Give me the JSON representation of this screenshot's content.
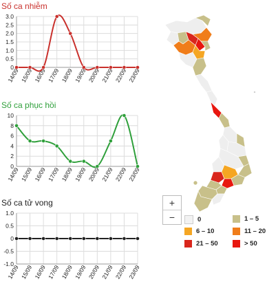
{
  "colors": {
    "cases": "#c9302c",
    "recovered": "#2e9f3a",
    "deaths": "#222222",
    "grid": "#dcdcdc",
    "axis": "#999999"
  },
  "chart_data": [
    {
      "type": "line",
      "title": "Số ca nhiễm",
      "categories": [
        "14/09",
        "15/09",
        "16/09",
        "17/09",
        "18/09",
        "19/09",
        "20/09",
        "21/09",
        "22/09",
        "23/09"
      ],
      "values": [
        0,
        0,
        0,
        3,
        2,
        0,
        0,
        0,
        0,
        0
      ],
      "ylim": [
        0,
        3
      ],
      "yticks": [
        "0",
        "0.5",
        "1.0",
        "1.5",
        "2.0",
        "2.5",
        "3.0"
      ],
      "ytick_values": [
        0,
        0.5,
        1,
        1.5,
        2,
        2.5,
        3
      ],
      "grid": true
    },
    {
      "type": "line",
      "title": "Số ca phục hồi",
      "categories": [
        "14/09",
        "15/09",
        "16/09",
        "17/09",
        "18/09",
        "19/09",
        "20/09",
        "21/09",
        "22/09",
        "23/09"
      ],
      "values": [
        8,
        5,
        5,
        4,
        1,
        1,
        0,
        5,
        10,
        0
      ],
      "ylim": [
        0,
        10
      ],
      "yticks": [
        "0",
        "2",
        "4",
        "6",
        "8",
        "10"
      ],
      "ytick_values": [
        0,
        2,
        4,
        6,
        8,
        10
      ],
      "grid": true
    },
    {
      "type": "line",
      "title": "Số ca tử vong",
      "categories": [
        "14/09",
        "15/09",
        "16/09",
        "17/09",
        "18/09",
        "19/09",
        "20/09",
        "21/09",
        "22/09",
        "23/09"
      ],
      "values": [
        0,
        0,
        0,
        0,
        0,
        0,
        0,
        0,
        0,
        0
      ],
      "ylim": [
        -1,
        1
      ],
      "yticks": [
        "-1.0",
        "-0.5",
        "0",
        "0.5",
        "1.0"
      ],
      "ytick_values": [
        -1,
        -0.5,
        0,
        0.5,
        1
      ],
      "grid": true
    }
  ],
  "map": {
    "zoom_in_label": "+",
    "zoom_out_label": "−",
    "legend": [
      {
        "label": "0",
        "color": "#f2f2f2"
      },
      {
        "label": "1 – 5",
        "color": "#c8c08a"
      },
      {
        "label": "6 – 10",
        "color": "#f5a623"
      },
      {
        "label": "11 – 20",
        "color": "#f07d1a"
      },
      {
        "label": "21 – 50",
        "color": "#d9261c"
      },
      {
        "label": "> 50",
        "color": "#e8170f"
      }
    ]
  }
}
